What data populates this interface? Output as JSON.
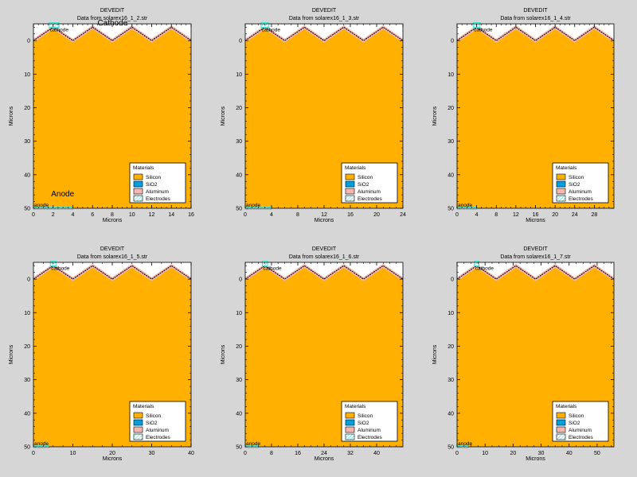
{
  "chart_data": [
    {
      "type": "area",
      "title": "DEVEDIT",
      "subtitle": "Data from solarex16_1_2.str",
      "xlabel": "Microns",
      "ylabel": "Microns",
      "xlim": [
        0,
        16
      ],
      "ylim": [
        50,
        -5
      ],
      "xticks": [
        0,
        2,
        4,
        6,
        8,
        10,
        12,
        14,
        16
      ],
      "yticks": [
        0,
        10,
        20,
        30,
        40,
        50
      ],
      "surface": {
        "x": [
          0,
          2,
          4,
          6,
          8,
          10,
          12,
          14,
          16
        ],
        "y": [
          0,
          4,
          0,
          4,
          0,
          4,
          0,
          4,
          0
        ]
      },
      "legend": {
        "title": "Materials",
        "items": [
          "Silicon",
          "SiO2",
          "Aluminum",
          "Electrodes"
        ],
        "position": "bottom-right"
      },
      "electrodes": [
        {
          "label": "cathode",
          "x": [
            1.6,
            2.6
          ],
          "y": 4.4
        },
        {
          "label": "anode",
          "x": [
            0,
            4
          ],
          "y": 50
        }
      ],
      "annotations": [
        {
          "text": "Cathode",
          "x": 6.5,
          "y": 4.5
        },
        {
          "text": "Anode",
          "x": 1.8,
          "y": 46.5
        }
      ]
    },
    {
      "type": "area",
      "title": "DEVEDIT",
      "subtitle": "Data from solarex16_1_3.str",
      "xlabel": "Microns",
      "ylabel": "Microns",
      "xlim": [
        0,
        24
      ],
      "ylim": [
        50,
        -5
      ],
      "xticks": [
        0,
        4,
        8,
        12,
        16,
        20,
        24
      ],
      "yticks": [
        0,
        10,
        20,
        30,
        40,
        50
      ],
      "surface": {
        "x": [
          0,
          3,
          6,
          9,
          12,
          15,
          18,
          21,
          24
        ],
        "y": [
          0,
          4,
          0,
          4,
          0,
          4,
          0,
          4,
          0
        ]
      },
      "legend": {
        "title": "Materials",
        "items": [
          "Silicon",
          "SiO2",
          "Aluminum",
          "Electrodes"
        ],
        "position": "bottom-right"
      },
      "electrodes": [
        {
          "label": "cathode",
          "x": [
            2.4,
            3.6
          ],
          "y": 4.4
        },
        {
          "label": "anode",
          "x": [
            0,
            4
          ],
          "y": 50
        }
      ],
      "annotations": []
    },
    {
      "type": "area",
      "title": "DEVEDIT",
      "subtitle": "Data from solarex16_1_4.str",
      "xlabel": "Microns",
      "ylabel": "Microns",
      "xlim": [
        0,
        32
      ],
      "ylim": [
        50,
        -5
      ],
      "xticks": [
        0,
        4,
        8,
        12,
        16,
        20,
        24,
        28
      ],
      "yticks": [
        0,
        10,
        20,
        30,
        40,
        50
      ],
      "surface": {
        "x": [
          0,
          4,
          8,
          12,
          16,
          20,
          24,
          28,
          32
        ],
        "y": [
          0,
          4,
          0,
          4,
          0,
          4,
          0,
          4,
          0
        ]
      },
      "legend": {
        "title": "Materials",
        "items": [
          "Silicon",
          "SiO2",
          "Aluminum",
          "Electrodes"
        ],
        "position": "bottom-right"
      },
      "electrodes": [
        {
          "label": "cathode",
          "x": [
            3.3,
            4.7
          ],
          "y": 4.4
        },
        {
          "label": "anode",
          "x": [
            0,
            4
          ],
          "y": 50
        }
      ],
      "annotations": []
    },
    {
      "type": "area",
      "title": "DEVEDIT",
      "subtitle": "Data from solarex16_1_5.str",
      "xlabel": "Microns",
      "ylabel": "Microns",
      "xlim": [
        0,
        40
      ],
      "ylim": [
        50,
        -5
      ],
      "xticks": [
        0,
        10,
        20,
        30,
        40
      ],
      "yticks": [
        0,
        10,
        20,
        30,
        40,
        50
      ],
      "surface": {
        "x": [
          0,
          5,
          10,
          15,
          20,
          25,
          30,
          35,
          40
        ],
        "y": [
          0,
          4,
          0,
          4,
          0,
          4,
          0,
          4,
          0
        ]
      },
      "legend": {
        "title": "Materials",
        "items": [
          "Silicon",
          "SiO2",
          "Aluminum",
          "Electrodes"
        ],
        "position": "bottom-right"
      },
      "electrodes": [
        {
          "label": "cathode",
          "x": [
            4.3,
            5.7
          ],
          "y": 4.4
        },
        {
          "label": "anode",
          "x": [
            0,
            4
          ],
          "y": 50
        }
      ],
      "annotations": []
    },
    {
      "type": "area",
      "title": "DEVEDIT",
      "subtitle": "Data from solarex16_1_6.str",
      "xlabel": "Microns",
      "ylabel": "Microns",
      "xlim": [
        0,
        48
      ],
      "ylim": [
        50,
        -5
      ],
      "xticks": [
        0,
        8,
        16,
        24,
        32,
        40
      ],
      "yticks": [
        0,
        10,
        20,
        30,
        40,
        50
      ],
      "surface": {
        "x": [
          0,
          6,
          12,
          18,
          24,
          30,
          36,
          42,
          48
        ],
        "y": [
          0,
          4,
          0,
          4,
          0,
          4,
          0,
          4,
          0
        ]
      },
      "legend": {
        "title": "Materials",
        "items": [
          "Silicon",
          "SiO2",
          "Aluminum",
          "Electrodes"
        ],
        "position": "bottom-right"
      },
      "electrodes": [
        {
          "label": "cathode",
          "x": [
            5.2,
            6.8
          ],
          "y": 4.4
        },
        {
          "label": "anode",
          "x": [
            0,
            4
          ],
          "y": 50
        }
      ],
      "annotations": []
    },
    {
      "type": "area",
      "title": "DEVEDIT",
      "subtitle": "Data from solarex16_1_7.str",
      "xlabel": "Microns",
      "ylabel": "Microns",
      "xlim": [
        0,
        56
      ],
      "ylim": [
        50,
        -5
      ],
      "xticks": [
        0,
        10,
        20,
        30,
        40,
        50
      ],
      "yticks": [
        0,
        10,
        20,
        30,
        40,
        50
      ],
      "surface": {
        "x": [
          0,
          7,
          14,
          21,
          28,
          35,
          42,
          49,
          56
        ],
        "y": [
          0,
          4,
          0,
          4,
          0,
          4,
          0,
          4,
          0
        ]
      },
      "legend": {
        "title": "Materials",
        "items": [
          "Silicon",
          "SiO2",
          "Aluminum",
          "Electrodes"
        ],
        "position": "bottom-right"
      },
      "electrodes": [
        {
          "label": "cathode",
          "x": [
            6.2,
            7.8
          ],
          "y": 4.4
        },
        {
          "label": "anode",
          "x": [
            0,
            4
          ],
          "y": 50
        }
      ],
      "annotations": []
    }
  ],
  "colors": {
    "page_background": "#d6d6d6",
    "plot_background": "#ffffff",
    "silicon": "#ffb000",
    "sio2": "#00a0e0",
    "aluminum": "#f4b8b0",
    "electrodes": "#40e0d0",
    "surface_line": "#000000"
  },
  "legend_icons": [
    "silicon-swatch",
    "sio2-swatch",
    "aluminum-swatch",
    "electrodes-hatched-swatch"
  ]
}
